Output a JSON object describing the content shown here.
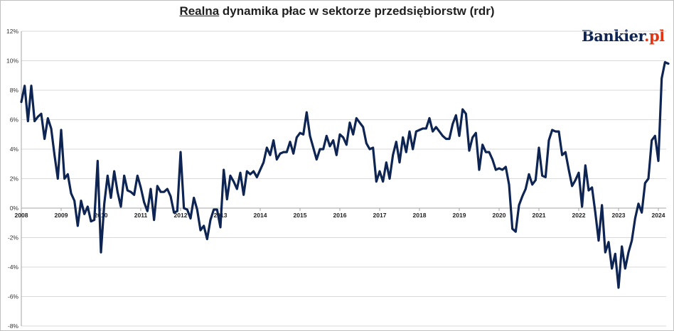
{
  "chart_data": {
    "type": "line",
    "title_emphasis": "Realna",
    "title_rest": " dynamika płac w sektorze przedsiębiorstw (rdr)",
    "brand": {
      "name": "Bankier",
      "suffix": ".pl"
    },
    "ylim": [
      -8,
      12
    ],
    "y_ticks": [
      "-8%",
      "-6%",
      "-4%",
      "-2%",
      "0%",
      "2%",
      "4%",
      "6%",
      "8%",
      "10%",
      "12%"
    ],
    "x_ticks": [
      "2008",
      "2009",
      "2010",
      "2011",
      "2012",
      "2013",
      "2014",
      "2015",
      "2016",
      "2017",
      "2018",
      "2019",
      "2020",
      "2021",
      "2022",
      "2023",
      "2024"
    ],
    "grid": true,
    "colors": {
      "line": "#0e2452",
      "grid": "#d9d9d9"
    },
    "series": [
      {
        "x_start": "2008-01",
        "frequency": "monthly",
        "values": [
          7.2,
          8.3,
          5.9,
          8.3,
          5.9,
          6.2,
          6.4,
          4.7,
          6.1,
          5.4,
          3.6,
          2.0,
          5.3,
          2.0,
          2.3,
          1.0,
          0.5,
          -1.2,
          0.5,
          -0.4,
          0.1,
          -0.9,
          -0.8,
          3.2,
          -3.0,
          0.3,
          2.2,
          0.7,
          2.5,
          1.1,
          0.1,
          2.2,
          1.2,
          1.1,
          0.9,
          2.2,
          1.4,
          0.4,
          -0.2,
          1.3,
          -0.8,
          1.5,
          1.1,
          1.1,
          1.3,
          0.8,
          -0.3,
          -0.2,
          3.8,
          0.0,
          -0.1,
          -0.7,
          0.7,
          -0.1,
          -1.5,
          -1.2,
          -2.1,
          -0.8,
          -0.1,
          -0.1,
          -1.3,
          2.6,
          0.6,
          2.2,
          1.8,
          1.3,
          2.4,
          0.9,
          2.5,
          2.3,
          2.5,
          2.1,
          2.6,
          3.1,
          4.1,
          3.6,
          4.6,
          3.3,
          3.7,
          3.8,
          3.8,
          4.5,
          3.7,
          4.8,
          5.1,
          5.0,
          6.5,
          4.9,
          4.1,
          3.3,
          4.0,
          4.0,
          4.9,
          4.2,
          4.6,
          3.6,
          5.0,
          4.8,
          4.3,
          5.8,
          5.0,
          6.1,
          5.8,
          5.5,
          4.4,
          4.0,
          4.1,
          1.8,
          2.5,
          1.8,
          3.1,
          2.0,
          3.6,
          4.5,
          3.1,
          4.8,
          3.8,
          5.2,
          4.0,
          5.2,
          5.3,
          5.4,
          5.4,
          6.1,
          5.2,
          5.5,
          5.2,
          4.9,
          4.7,
          4.7,
          5.7,
          6.3,
          4.9,
          6.7,
          6.4,
          3.9,
          4.8,
          5.1,
          2.6,
          4.3,
          3.8,
          3.8,
          3.3,
          2.6,
          2.7,
          2.6,
          2.8,
          1.6,
          -1.4,
          -1.6,
          0.2,
          0.8,
          1.3,
          2.3,
          1.6,
          1.9,
          4.1,
          2.2,
          2.1,
          4.6,
          5.3,
          5.2,
          5.2,
          3.6,
          3.8,
          2.6,
          1.5,
          1.9,
          2.4,
          0.1,
          2.9,
          1.2,
          1.4,
          -0.3,
          -2.2,
          0.2,
          -3.0,
          -2.3,
          -4.1,
          -3.1,
          -5.4,
          -2.6,
          -4.1,
          -3.0,
          -2.2,
          -0.7,
          0.3,
          -0.3,
          1.7,
          2.0,
          4.6,
          4.9,
          3.2,
          8.8,
          9.9,
          9.8
        ]
      }
    ]
  }
}
